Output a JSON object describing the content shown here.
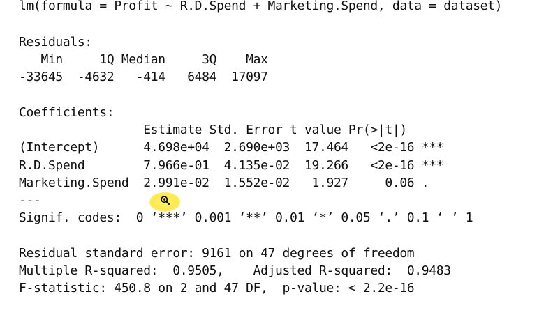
{
  "console": {
    "call": "lm(formula = Profit ~ R.D.Spend + Marketing.Spend, data = dataset)",
    "residuals_header": "Residuals:",
    "residuals_labels": "   Min     1Q Median     3Q    Max ",
    "residuals_values": "-33645  -4632   -414   6484  17097 ",
    "coefficients_header": "Coefficients:",
    "coef_header_row": "                 Estimate Std. Error t value Pr(>|t|)    ",
    "coef_rows": [
      "(Intercept)      4.698e+04  2.690e+03  17.464   <2e-16 ***",
      "R.D.Spend        7.966e-01  4.135e-02  19.266   <2e-16 ***",
      "Marketing.Spend  2.991e-02  1.552e-02   1.927     0.06 . "
    ],
    "separator": "---",
    "signif_codes": "Signif. codes:  0 ‘***’ 0.001 ‘**’ 0.01 ‘*’ 0.05 ‘.’ 0.1 ‘ ’ 1",
    "residual_se": "Residual standard error: 9161 on 47 degrees of freedom",
    "r_squared": "Multiple R-squared:  0.9505,\tAdjusted R-squared:  0.9483 ",
    "f_statistic": "F-statistic: 450.8 on 2 and 47 DF,  p-value: < 2.2e-16"
  },
  "cursor": {
    "icon": "zoom-magnifier-icon",
    "highlight_color": "#ffe94a"
  }
}
